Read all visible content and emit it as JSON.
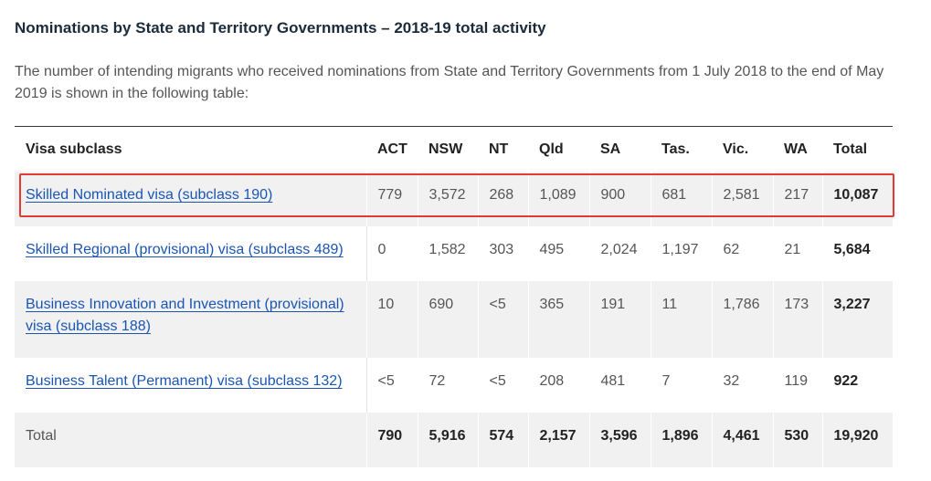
{
  "heading": "Nominations by State and Territory Governments – 2018-19 total activity",
  "intro": "The number of intending migrants who received nominations from State and Territory Governments from 1 July 2018 to the end of May 2019 is shown in the following table:",
  "table": {
    "headers": [
      "Visa subclass",
      "ACT",
      "NSW",
      "NT",
      "Qld",
      "SA",
      "Tas.",
      "Vic.",
      "WA",
      "Total"
    ],
    "rows": [
      {
        "visa": "Skilled Nominated visa (subclass 190)",
        "values": [
          "779",
          "3,572",
          "268",
          "1,089",
          "900",
          "681",
          "2,581",
          "217"
        ],
        "total": "10,087"
      },
      {
        "visa": "Skilled Regional (provisional) visa (subclass 489)",
        "values": [
          "0",
          "1,582",
          "303",
          "495",
          "2,024",
          "1,197",
          "62",
          "21"
        ],
        "total": "5,684"
      },
      {
        "visa": "Business Innovation and Investment (provisional) visa (subclass 188)",
        "values": [
          "10",
          "690",
          "<5",
          "365",
          "191",
          "11",
          "1,786",
          "173"
        ],
        "total": "3,227"
      },
      {
        "visa": "Business Talent (Permanent) visa (subclass 132)",
        "values": [
          "<5",
          "72",
          "<5",
          "208",
          "481",
          "7",
          "32",
          "119"
        ],
        "total": "922"
      }
    ],
    "total_row": {
      "label": "Total",
      "values": [
        "790",
        "5,916",
        "574",
        "2,157",
        "3,596",
        "1,896",
        "4,461",
        "530",
        "19,920"
      ]
    }
  },
  "highlight_color": "#e53935",
  "link_color": "#1a55b3"
}
